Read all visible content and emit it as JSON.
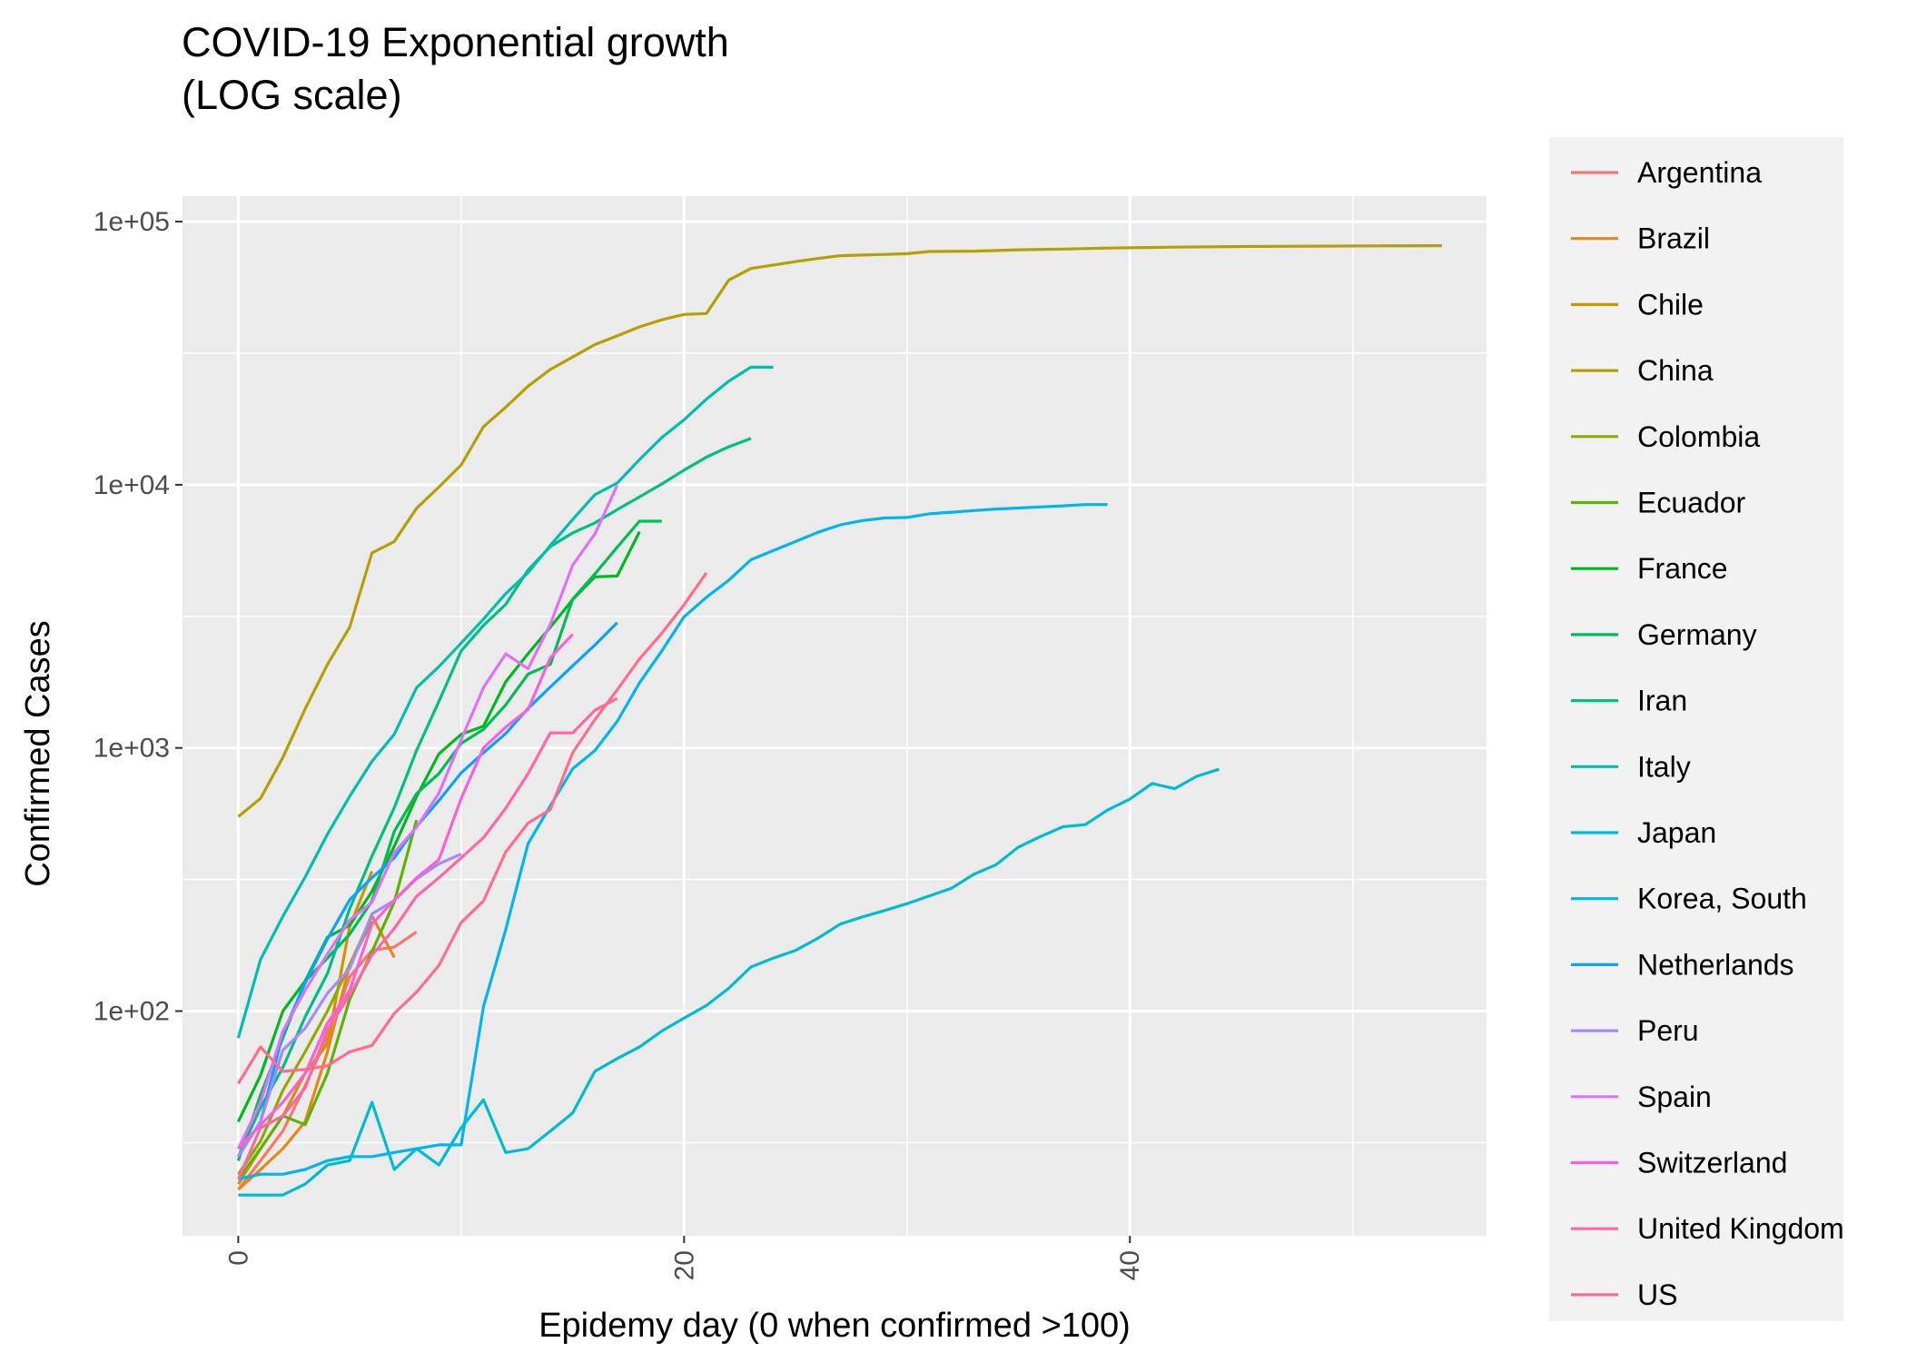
{
  "chart_data": {
    "type": "line",
    "title": "COVID-19 Exponential growth",
    "subtitle": "(LOG scale)",
    "xlabel": "Epidemy day (0 when confirmed >100)",
    "ylabel": "Confirmed Cases",
    "y_scale": "log10",
    "xlim": [
      -2.5,
      56
    ],
    "ylim": [
      14,
      125000
    ],
    "x_ticks": [
      0,
      20,
      40
    ],
    "x_tick_labels": [
      "0",
      "20",
      "40"
    ],
    "y_ticks": [
      100,
      1000,
      10000,
      100000
    ],
    "y_tick_labels": [
      "1e+02",
      "1e+03",
      "1e+04",
      "1e+05"
    ],
    "grid": true,
    "legend_position": "right",
    "panel_background": "#ebebeb",
    "series": [
      {
        "name": "Argentina",
        "color": "#F8766D",
        "x": [
          0,
          1,
          2,
          3,
          4,
          5,
          6,
          7,
          8
        ],
        "y": [
          21,
          27,
          35,
          52,
          80,
          135,
          170,
          175,
          200
        ]
      },
      {
        "name": "Brazil",
        "color": "#E7851E",
        "x": [
          0,
          1,
          2,
          3,
          4,
          5,
          6,
          7
        ],
        "y": [
          21,
          25,
          30,
          38,
          70,
          150,
          230,
          160
        ]
      },
      {
        "name": "Chile",
        "color": "#D09400",
        "x": [
          0,
          1,
          2,
          3,
          4,
          5,
          6
        ],
        "y": [
          22,
          30,
          40,
          58,
          75,
          210,
          340
        ]
      },
      {
        "name": "China",
        "color": "#B2A100",
        "x": [
          0,
          1,
          2,
          3,
          4,
          5,
          6,
          7,
          8,
          9,
          10,
          11,
          12,
          13,
          14,
          15,
          16,
          17,
          18,
          19,
          20,
          21,
          22,
          23,
          24,
          25,
          26,
          27,
          28,
          29,
          30,
          31,
          33,
          35,
          37,
          39,
          42,
          45,
          48,
          51,
          54
        ],
        "y": [
          548,
          643,
          920,
          1406,
          2075,
          2877,
          5509,
          6087,
          8141,
          9802,
          11891,
          16630,
          19716,
          23707,
          27440,
          30587,
          34110,
          36814,
          39829,
          42354,
          44386,
          44759,
          59895,
          66358,
          68413,
          70513,
          72434,
          74211,
          74619,
          75077,
          75550,
          77001,
          77262,
          78166,
          78630,
          79356,
          79968,
          80400,
          80700,
          80900,
          81000
        ]
      },
      {
        "name": "Colombia",
        "color": "#8EAB00",
        "x": [
          0,
          1,
          2,
          3,
          4,
          5,
          6
        ],
        "y": [
          24,
          32,
          50,
          70,
          100,
          150,
          220
        ]
      },
      {
        "name": "Ecuador",
        "color": "#5EB300",
        "x": [
          0,
          1,
          2,
          3,
          4,
          5,
          6,
          7,
          8
        ],
        "y": [
          23,
          30,
          40,
          37,
          58,
          111,
          168,
          260,
          532
        ]
      },
      {
        "name": "France",
        "color": "#00B81F",
        "x": [
          0,
          1,
          2,
          3,
          4,
          5,
          6,
          7,
          8,
          9,
          10,
          11,
          12,
          13,
          14,
          15,
          16,
          17,
          18
        ],
        "y": [
          38,
          57,
          100,
          130,
          191,
          212,
          285,
          423,
          653,
          949,
          1126,
          1209,
          1784,
          2281,
          2876,
          3661,
          4469,
          4499,
          6633
        ]
      },
      {
        "name": "Germany",
        "color": "#00BC56",
        "x": [
          0,
          1,
          2,
          3,
          4,
          5,
          6,
          7,
          8,
          9,
          10,
          11,
          12,
          13,
          14,
          15,
          16,
          17,
          18,
          19
        ],
        "y": [
          27,
          48,
          79,
          130,
          159,
          196,
          262,
          482,
          670,
          799,
          1040,
          1176,
          1457,
          1908,
          2078,
          3675,
          4585,
          5795,
          7272,
          7272
        ]
      },
      {
        "name": "Iran",
        "color": "#00BF84",
        "x": [
          0,
          1,
          2,
          3,
          4,
          5,
          6,
          7,
          8,
          9,
          10,
          11,
          12,
          13,
          14,
          15,
          16,
          17,
          18,
          19,
          20,
          21,
          22,
          23
        ],
        "y": [
          28,
          43,
          61,
          95,
          139,
          245,
          388,
          593,
          978,
          1501,
          2336,
          2922,
          3513,
          4747,
          5823,
          6566,
          7161,
          8042,
          9000,
          10075,
          11364,
          12729,
          13938,
          14991
        ]
      },
      {
        "name": "Italy",
        "color": "#00BFAD",
        "x": [
          0,
          1,
          2,
          3,
          4,
          5,
          6,
          7,
          8,
          9,
          10,
          11,
          12,
          13,
          14,
          15,
          16,
          17,
          18,
          19,
          20,
          21,
          22,
          23,
          24
        ],
        "y": [
          79,
          157,
          229,
          323,
          470,
          655,
          889,
          1128,
          1694,
          2036,
          2502,
          3089,
          3858,
          4636,
          5883,
          7375,
          9172,
          10149,
          12462,
          15113,
          17660,
          21157,
          24747,
          27980,
          27980
        ]
      },
      {
        "name": "Japan",
        "color": "#00BCD3",
        "x": [
          0,
          1,
          2,
          3,
          4,
          5,
          6,
          7,
          8,
          9,
          10,
          11,
          12,
          13,
          14,
          15,
          16,
          17,
          18,
          19,
          20,
          21,
          22,
          23,
          24,
          25,
          26,
          27,
          28,
          29,
          30,
          31,
          32,
          33,
          34,
          35,
          36,
          37,
          38,
          39,
          40,
          41,
          42,
          43,
          44
        ],
        "y": [
          20,
          20,
          20,
          22,
          26,
          27,
          45,
          25,
          30,
          26,
          36,
          46,
          29,
          30,
          35,
          41,
          59,
          66,
          73,
          84,
          94,
          105,
          122,
          147,
          159,
          170,
          189,
          214,
          228,
          241,
          256,
          274,
          293,
          331,
          360,
          420,
          461,
          502,
          511,
          581,
          639,
          733,
          700,
          780,
          830
        ]
      },
      {
        "name": "Korea, South",
        "color": "#00B6EB",
        "x": [
          0,
          1,
          2,
          3,
          4,
          5,
          6,
          7,
          8,
          9,
          10,
          11,
          12,
          13,
          14,
          15,
          16,
          17,
          18,
          19,
          20,
          21,
          22,
          23,
          24,
          25,
          26,
          27,
          28,
          29,
          30,
          31,
          32,
          33,
          34,
          35,
          36,
          37,
          38,
          39
        ],
        "y": [
          23,
          24,
          24,
          25,
          27,
          28,
          28,
          29,
          30,
          31,
          31,
          104,
          204,
          433,
          602,
          833,
          977,
          1261,
          1766,
          2337,
          3150,
          3736,
          4335,
          5186,
          5621,
          6088,
          6593,
          7041,
          7314,
          7478,
          7513,
          7755,
          7869,
          7979,
          8086,
          8162,
          8236,
          8320,
          8413,
          8413
        ]
      },
      {
        "name": "Netherlands",
        "color": "#06A4FF",
        "x": [
          0,
          1,
          2,
          3,
          4,
          5,
          6,
          7,
          8,
          9,
          10,
          11,
          12,
          13,
          14,
          15,
          16,
          17
        ],
        "y": [
          28,
          38,
          82,
          128,
          188,
          265,
          321,
          382,
          503,
          631,
          804,
          959,
          1135,
          1413,
          1705,
          2051,
          2460,
          2994
        ]
      },
      {
        "name": "Peru",
        "color": "#A58AFF",
        "x": [
          0,
          1,
          2,
          3,
          4,
          5,
          6,
          7,
          8,
          9,
          10
        ],
        "y": [
          28,
          38,
          71,
          86,
          117,
          145,
          234,
          263,
          318,
          363,
          395
        ]
      },
      {
        "name": "Spain",
        "color": "#DF70F8",
        "x": [
          0,
          1,
          2,
          3,
          4,
          5,
          6,
          7,
          8,
          9,
          10,
          11,
          12,
          13,
          14,
          15,
          16,
          17
        ],
        "y": [
          30,
          45,
          84,
          120,
          165,
          222,
          259,
          400,
          500,
          673,
          1073,
          1695,
          2277,
          2000,
          2950,
          4950,
          6500,
          9950
        ]
      },
      {
        "name": "Switzerland",
        "color": "#FB61D7",
        "x": [
          0,
          1,
          2,
          3,
          4,
          5,
          6,
          7,
          8,
          9,
          10,
          11,
          12,
          13,
          14,
          15
        ],
        "y": [
          30,
          37,
          45,
          58,
          90,
          120,
          214,
          264,
          321,
          376,
          642,
          1000,
          1200,
          1400,
          2200,
          2700
        ]
      },
      {
        "name": "United Kingdom",
        "color": "#FF66A8",
        "x": [
          0,
          1,
          2,
          3,
          4,
          5,
          6,
          7,
          8,
          9,
          10,
          11,
          12,
          13,
          14,
          15,
          16,
          17
        ],
        "y": [
          23,
          36,
          40,
          51,
          85,
          115,
          163,
          206,
          273,
          321,
          382,
          456,
          590,
          798,
          1140,
          1140,
          1391,
          1543
        ]
      },
      {
        "name": "US",
        "color": "#FF6C91",
        "x": [
          0,
          1,
          2,
          3,
          4,
          5,
          6,
          7,
          8,
          9,
          10,
          11,
          12,
          13,
          14,
          15,
          16,
          17,
          18,
          19,
          20,
          21
        ],
        "y": [
          53,
          73,
          59,
          60,
          62,
          70,
          74,
          98,
          118,
          149,
          217,
          262,
          402,
          518,
          583,
          959,
          1281,
          1663,
          2179,
          2727,
          3499,
          4632
        ]
      }
    ]
  }
}
